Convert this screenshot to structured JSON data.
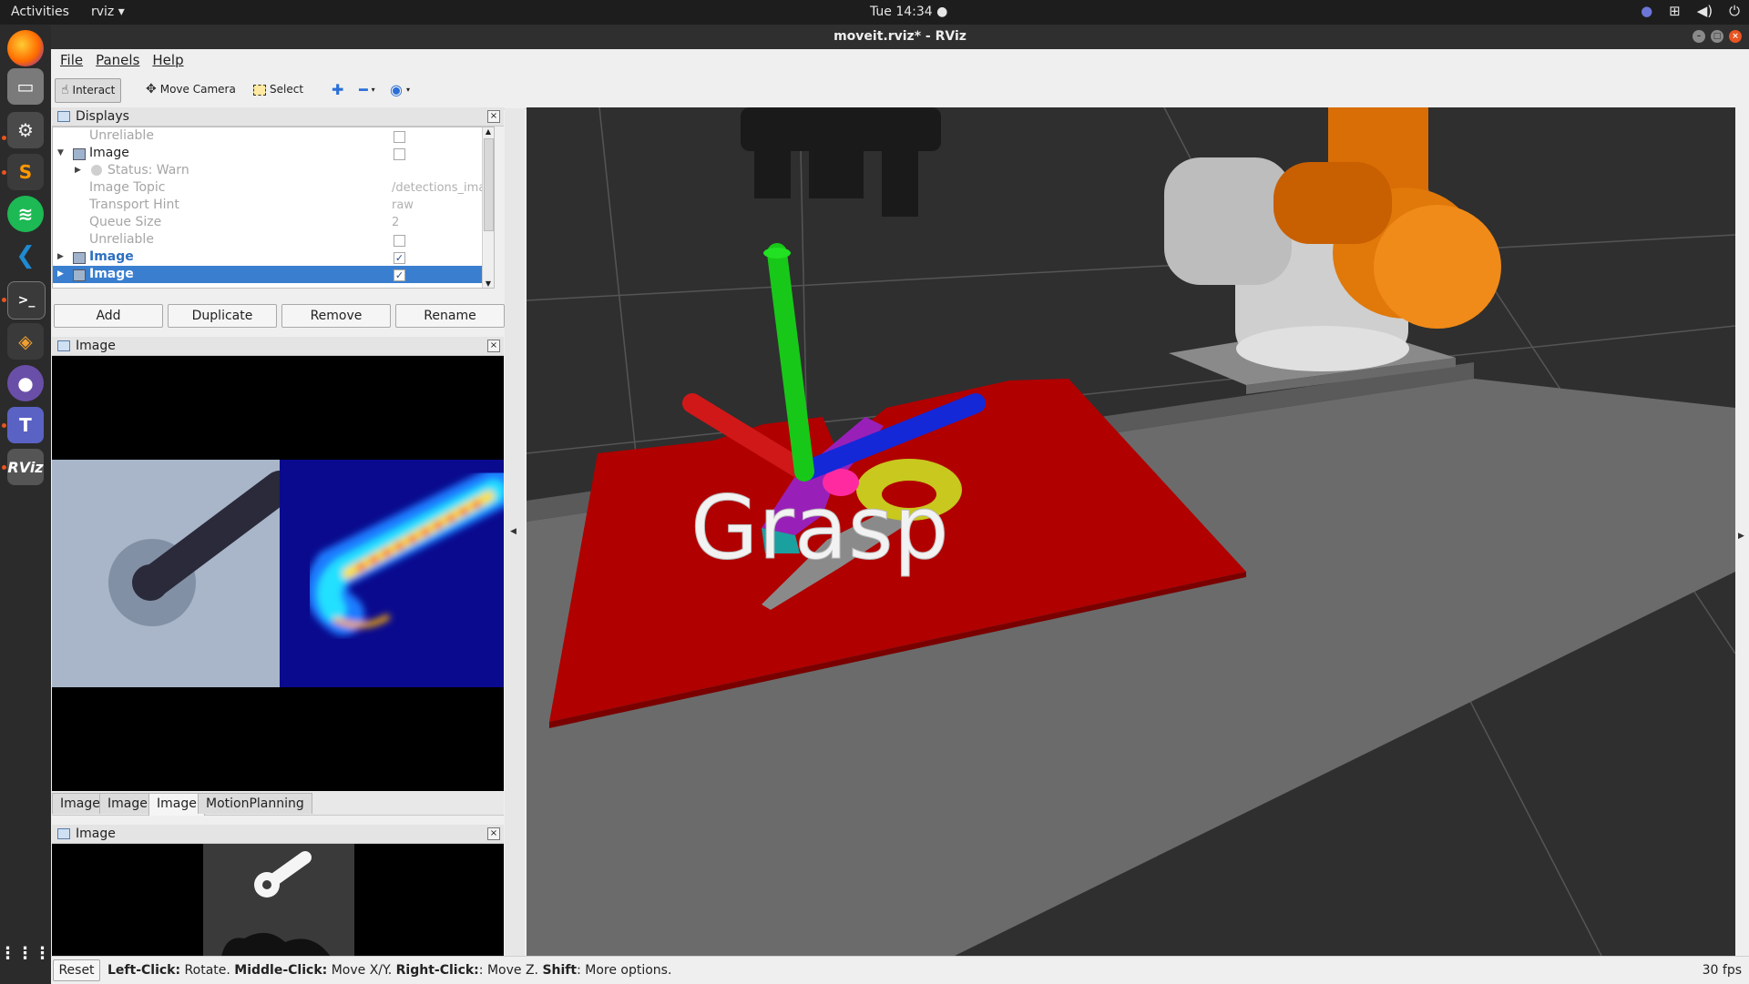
{
  "topbar": {
    "activities": "Activities",
    "app_menu": "rviz ▾",
    "clock": "Tue 14:34 ●",
    "tray_icons": [
      "teams-tray-icon",
      "network-icon",
      "volume-icon",
      "power-icon"
    ]
  },
  "dock": {
    "apps": [
      "firefox",
      "files",
      "settings",
      "sublime-text",
      "spotify",
      "vscode",
      "terminal",
      "package-installer",
      "github-desktop",
      "teams",
      "rviz"
    ],
    "rviz_label": "RViz"
  },
  "window": {
    "title": "moveit.rviz* - RViz"
  },
  "menu": {
    "file": "File",
    "panels": "Panels",
    "help": "Help"
  },
  "toolbar": {
    "interact": "Interact",
    "move_camera": "Move Camera",
    "select": "Select"
  },
  "displays": {
    "title": "Displays",
    "rows": [
      {
        "label": "Unreliable",
        "type": "checkbox",
        "checked": false
      },
      {
        "label": "Image",
        "type": "checkbox",
        "checked": false
      },
      {
        "label": "Status: Warn"
      },
      {
        "label": "Image Topic",
        "value": "/detections_ima"
      },
      {
        "label": "Transport Hint",
        "value": "raw"
      },
      {
        "label": "Queue Size",
        "value": "2"
      },
      {
        "label": "Unreliable",
        "type": "checkbox",
        "checked": false
      },
      {
        "label": "Image",
        "type": "checkbox",
        "checked": true
      },
      {
        "label": "Image",
        "type": "checkbox",
        "checked": true
      }
    ],
    "buttons": {
      "add": "Add",
      "duplicate": "Duplicate",
      "remove": "Remove",
      "rename": "Rename"
    }
  },
  "image_panel_1": {
    "title": "Image"
  },
  "tabs": [
    "Image",
    "Image",
    "Image",
    "MotionPlanning"
  ],
  "image_panel_2": {
    "title": "Image"
  },
  "view3d": {
    "overlay_text": "Grasp",
    "colors": {
      "floor": "#3a3a3a",
      "table": "#6e6e6e",
      "pointcloud": "#b00000",
      "axis_x": "#d01818",
      "axis_y": "#18c818",
      "axis_z": "#1428d8",
      "robot_orange": "#e0780a"
    }
  },
  "status": {
    "reset": "Reset",
    "left_click": "Left-Click:",
    "left_click_action": " Rotate. ",
    "middle_click": "Middle-Click:",
    "middle_click_action": " Move X/Y. ",
    "right_click": "Right-Click:",
    "right_click_action": ": Move Z. ",
    "shift": "Shift",
    "shift_action": ": More options.",
    "fps": "30 fps"
  }
}
